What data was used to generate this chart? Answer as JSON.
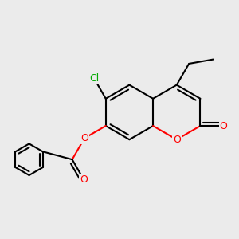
{
  "bg_color": "#ebebeb",
  "bond_color": "#000000",
  "bond_width": 1.5,
  "atom_colors": {
    "O": "#ff0000",
    "Cl": "#00aa00",
    "C": "#000000"
  },
  "font_size": 9,
  "figsize": [
    3.0,
    3.0
  ],
  "dpi": 100
}
